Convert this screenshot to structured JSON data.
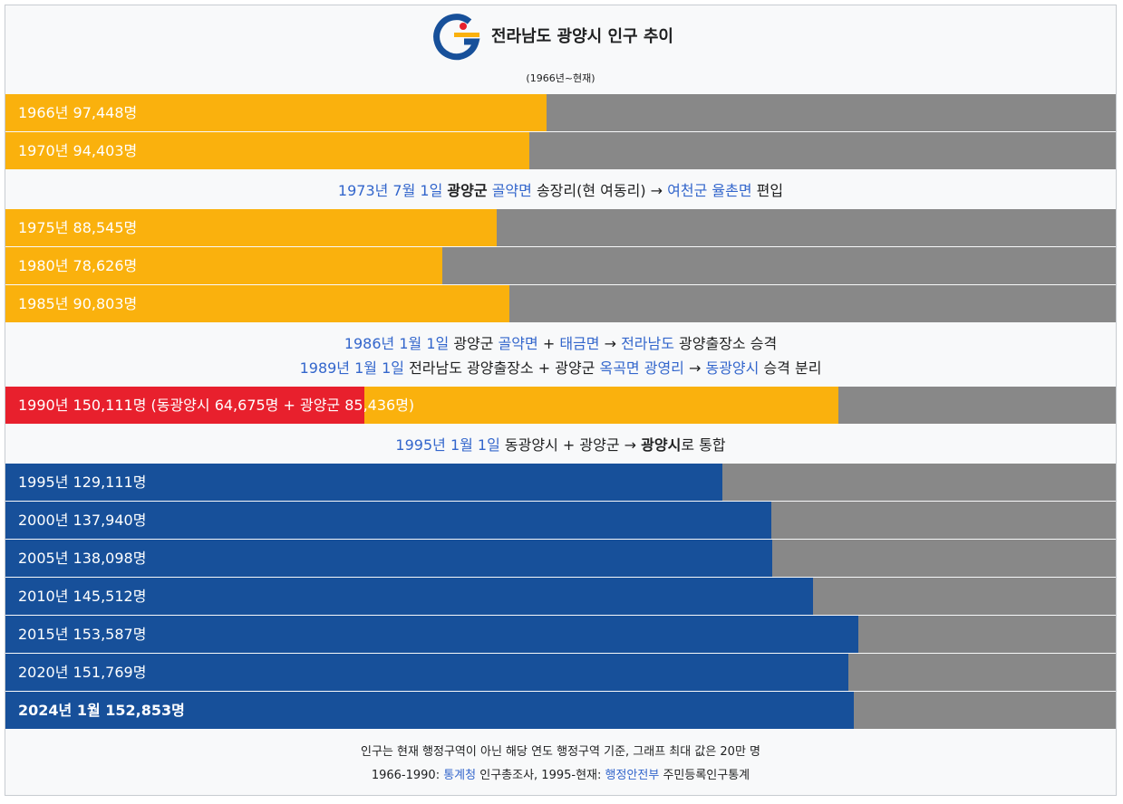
{
  "header": {
    "title": "전라남도 광양시 인구 추이",
    "subtitle": "(1966년~현재)",
    "logo_icon": "gwangyang-city-emblem-icon"
  },
  "colors": {
    "pre_merger": "#fab10d",
    "dong_gwangyang": "#e8202d",
    "post_merger": "#17509a",
    "remainder": "#888888",
    "link": "#3366cc"
  },
  "chart_data": {
    "type": "bar",
    "orientation": "horizontal",
    "unit": "명",
    "xlim": [
      0,
      200000
    ],
    "categories": [
      "1966년",
      "1970년",
      "1975년",
      "1980년",
      "1985년",
      "1990년",
      "1995년",
      "2000년",
      "2005년",
      "2010년",
      "2015년",
      "2020년",
      "2024년 1월"
    ],
    "values": [
      97448,
      94403,
      88545,
      78626,
      90803,
      150111,
      129111,
      137940,
      138098,
      145512,
      153587,
      151769,
      152853
    ],
    "labels": [
      "1966년 97,448명",
      "1970년 94,403명",
      "1975년 88,545명",
      "1980년 78,626명",
      "1985년 90,803명",
      "1990년 150,111명 (동광양시 64,675명 + 광양군 85,436명)",
      "1995년 129,111명",
      "2000년 137,940명",
      "2005년 138,098명",
      "2010년 145,512명",
      "2015년 153,587명",
      "2020년 151,769명",
      "2024년 1월 152,853명"
    ],
    "bars": [
      {
        "label": "1966년 97,448명",
        "value": 97448,
        "color": "#fab10d"
      },
      {
        "label": "1970년 94,403명",
        "value": 94403,
        "color": "#fab10d"
      },
      {
        "label": "1975년 88,545명",
        "value": 88545,
        "color": "#fab10d"
      },
      {
        "label": "1980년 78,626명",
        "value": 78626,
        "color": "#fab10d"
      },
      {
        "label": "1985년 90,803명",
        "value": 90803,
        "color": "#fab10d"
      },
      {
        "label": "1990년 150,111명 (동광양시 64,675명 + 광양군 85,436명)",
        "value": 150111,
        "segments": [
          {
            "value": 64675,
            "color": "#e8202d"
          },
          {
            "value": 85436,
            "color": "#fab10d"
          }
        ]
      },
      {
        "label": "1995년 129,111명",
        "value": 129111,
        "color": "#17509a"
      },
      {
        "label": "2000년 137,940명",
        "value": 137940,
        "color": "#17509a"
      },
      {
        "label": "2005년 138,098명",
        "value": 138098,
        "color": "#17509a"
      },
      {
        "label": "2010년 145,512명",
        "value": 145512,
        "color": "#17509a"
      },
      {
        "label": "2015년 153,587명",
        "value": 153587,
        "color": "#17509a"
      },
      {
        "label": "2020년 151,769명",
        "value": 151769,
        "color": "#17509a"
      },
      {
        "label": "2024년 1월 152,853명",
        "value": 152853,
        "color": "#17509a",
        "bold": true
      }
    ]
  },
  "notes": {
    "note_1973": [
      {
        "t": "1973년 7월 1일",
        "link": true
      },
      {
        "t": " "
      },
      {
        "t": "광양군",
        "bold": true
      },
      {
        "t": " "
      },
      {
        "t": "골약면",
        "link": true
      },
      {
        "t": " 송장리(현 여동리) → "
      },
      {
        "t": "여천군 율촌면",
        "link": true
      },
      {
        "t": " 편입"
      }
    ],
    "note_1986": [
      {
        "t": "1986년 1월 1일",
        "link": true
      },
      {
        "t": " 광양군 "
      },
      {
        "t": "골약면",
        "link": true
      },
      {
        "t": " + "
      },
      {
        "t": "태금면",
        "link": true
      },
      {
        "t": " → "
      },
      {
        "t": "전라남도",
        "link": true
      },
      {
        "t": " 광양출장소 승격"
      }
    ],
    "note_1989": [
      {
        "t": "1989년 1월 1일",
        "link": true
      },
      {
        "t": " 전라남도 광양출장소 + 광양군 "
      },
      {
        "t": "옥곡면 광영리",
        "link": true
      },
      {
        "t": " → "
      },
      {
        "t": "동광양시",
        "link": true
      },
      {
        "t": " 승격 분리"
      }
    ],
    "note_1995": [
      {
        "t": "1995년 1월 1일",
        "link": true
      },
      {
        "t": " 동광양시 + 광양군 → "
      },
      {
        "t": "광양시",
        "bold": true
      },
      {
        "t": "로 통합"
      }
    ]
  },
  "footer": {
    "basis": [
      {
        "t": "인구는 현재 행정구역이 아닌 해당 연도 행정구역 기준, 그래프 최대 값은 20만 명"
      }
    ],
    "sources": [
      {
        "t": "1966-1990: "
      },
      {
        "t": "통계청",
        "link": true
      },
      {
        "t": " 인구총조사, 1995-현재: "
      },
      {
        "t": "행정안전부",
        "link": true
      },
      {
        "t": " 주민등록인구통계"
      }
    ]
  }
}
